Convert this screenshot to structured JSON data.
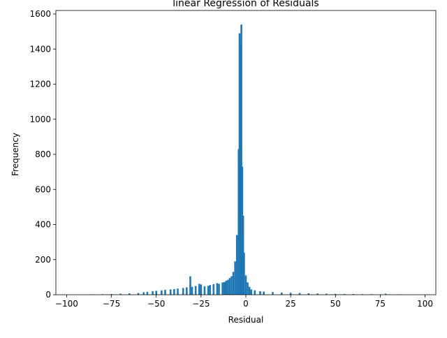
{
  "chart_data": {
    "type": "bar",
    "title": "linear Regression of Residuals",
    "xlabel": "Residual",
    "ylabel": "Frequency",
    "xlim": [
      -106,
      106
    ],
    "ylim": [
      0,
      1620
    ],
    "xticks": [
      -100,
      -75,
      -50,
      -25,
      0,
      25,
      50,
      75,
      100
    ],
    "xtick_labels": [
      "−100",
      "−75",
      "−50",
      "−25",
      "0",
      "25",
      "50",
      "75",
      "100"
    ],
    "yticks": [
      0,
      200,
      400,
      600,
      800,
      1000,
      1200,
      1400,
      1600
    ],
    "ytick_labels": [
      "0",
      "200",
      "400",
      "600",
      "800",
      "1000",
      "1200",
      "1400",
      "1600"
    ],
    "bar_color": "#1f77b4",
    "grid": false,
    "bin_width": 1,
    "bins": [
      {
        "x": -100,
        "y": 0
      },
      {
        "x": -90,
        "y": 1
      },
      {
        "x": -85,
        "y": 2
      },
      {
        "x": -80,
        "y": 3
      },
      {
        "x": -75,
        "y": 4
      },
      {
        "x": -70,
        "y": 6
      },
      {
        "x": -65,
        "y": 8
      },
      {
        "x": -60,
        "y": 10
      },
      {
        "x": -57,
        "y": 14
      },
      {
        "x": -55,
        "y": 16
      },
      {
        "x": -52,
        "y": 20
      },
      {
        "x": -50,
        "y": 22
      },
      {
        "x": -47,
        "y": 25
      },
      {
        "x": -45,
        "y": 28
      },
      {
        "x": -42,
        "y": 30
      },
      {
        "x": -40,
        "y": 32
      },
      {
        "x": -38,
        "y": 35
      },
      {
        "x": -35,
        "y": 38
      },
      {
        "x": -33,
        "y": 42
      },
      {
        "x": -31,
        "y": 105
      },
      {
        "x": -30,
        "y": 45
      },
      {
        "x": -28,
        "y": 50
      },
      {
        "x": -26,
        "y": 62
      },
      {
        "x": -25,
        "y": 58
      },
      {
        "x": -23,
        "y": 48
      },
      {
        "x": -21,
        "y": 50
      },
      {
        "x": -20,
        "y": 55
      },
      {
        "x": -18,
        "y": 60
      },
      {
        "x": -16,
        "y": 66
      },
      {
        "x": -15,
        "y": 62
      },
      {
        "x": -13,
        "y": 70
      },
      {
        "x": -12,
        "y": 72
      },
      {
        "x": -11,
        "y": 80
      },
      {
        "x": -10,
        "y": 85
      },
      {
        "x": -9,
        "y": 95
      },
      {
        "x": -8,
        "y": 105
      },
      {
        "x": -7,
        "y": 130
      },
      {
        "x": -6,
        "y": 190
      },
      {
        "x": -5,
        "y": 340
      },
      {
        "x": -4,
        "y": 830
      },
      {
        "x": -3.5,
        "y": 1490
      },
      {
        "x": -3,
        "y": 1430
      },
      {
        "x": -2.5,
        "y": 1540
      },
      {
        "x": -2,
        "y": 730
      },
      {
        "x": -1.5,
        "y": 450
      },
      {
        "x": -1,
        "y": 240
      },
      {
        "x": 0,
        "y": 110
      },
      {
        "x": 1,
        "y": 70
      },
      {
        "x": 2,
        "y": 45
      },
      {
        "x": 3,
        "y": 30
      },
      {
        "x": 5,
        "y": 25
      },
      {
        "x": 8,
        "y": 20
      },
      {
        "x": 10,
        "y": 18
      },
      {
        "x": 15,
        "y": 15
      },
      {
        "x": 20,
        "y": 12
      },
      {
        "x": 25,
        "y": 11
      },
      {
        "x": 30,
        "y": 10
      },
      {
        "x": 35,
        "y": 8
      },
      {
        "x": 40,
        "y": 7
      },
      {
        "x": 45,
        "y": 6
      },
      {
        "x": 50,
        "y": 5
      },
      {
        "x": 55,
        "y": 4
      },
      {
        "x": 60,
        "y": 4
      },
      {
        "x": 65,
        "y": 3
      },
      {
        "x": 70,
        "y": 3
      },
      {
        "x": 75,
        "y": 2
      },
      {
        "x": 78,
        "y": 6
      },
      {
        "x": 80,
        "y": 2
      },
      {
        "x": 85,
        "y": 2
      },
      {
        "x": 90,
        "y": 1
      },
      {
        "x": 95,
        "y": 1
      },
      {
        "x": 100,
        "y": 1
      }
    ]
  }
}
